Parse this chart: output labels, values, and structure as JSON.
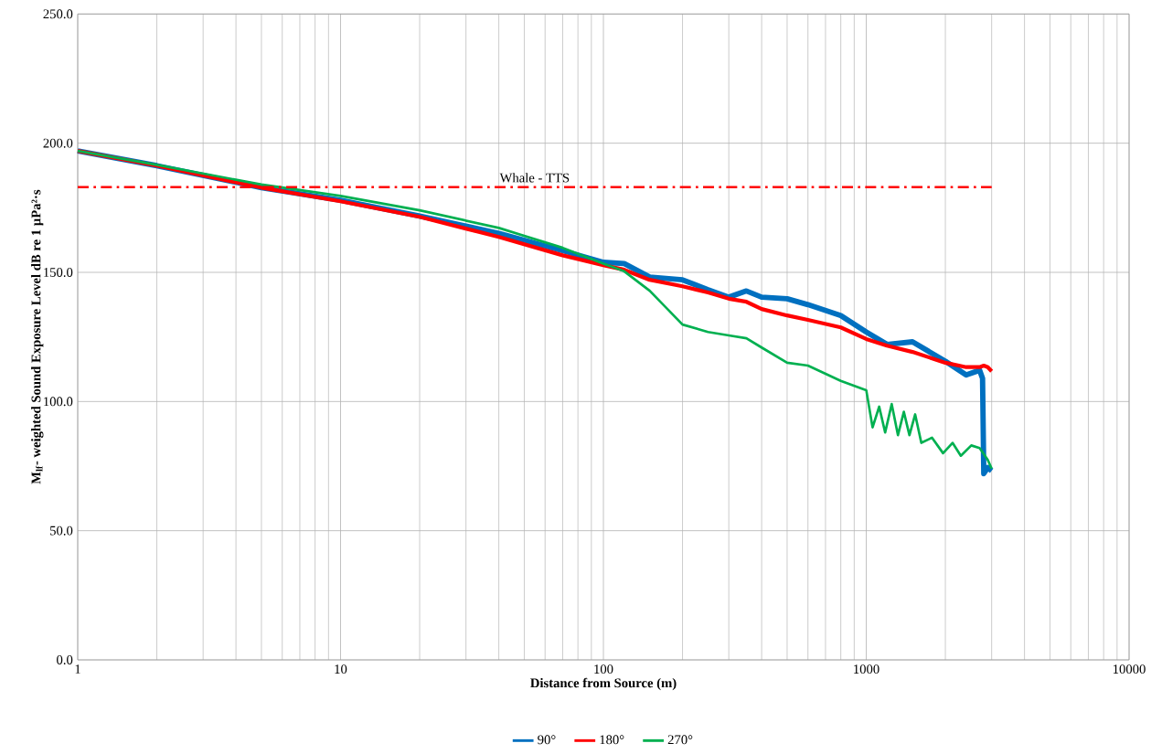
{
  "chart_data": {
    "type": "line",
    "xlabel": "Distance from Source (m)",
    "ylabel": "M$_{lf}$- weighted Sound Exposure Level dB re 1 µPa²·s",
    "log": "x",
    "grid": true,
    "legend": "bottom",
    "marker": "none",
    "line_style": "solid",
    "xlim": [
      1,
      10000
    ],
    "xticks": [
      1,
      10,
      100,
      1000,
      10000
    ],
    "ylim": [
      0,
      250
    ],
    "yticks": [
      {
        "value": 0,
        "label": "0.0"
      },
      {
        "value": 50,
        "label": "50.0"
      },
      {
        "value": 100,
        "label": "100.0"
      },
      {
        "value": 150,
        "label": "150.0"
      },
      {
        "value": 200,
        "label": "200.0"
      },
      {
        "value": 250,
        "label": "250.0"
      }
    ],
    "ref_lines": [
      {
        "axis": "y",
        "value": 183,
        "label": "Whale - TTS",
        "color": "#ff0000",
        "line_style": "dashed"
      }
    ],
    "series": [
      {
        "name": "90°",
        "color": "#0070c0",
        "x": [
          1,
          2,
          5,
          10,
          20,
          40,
          70,
          100,
          120,
          150,
          200,
          250,
          300,
          350,
          400,
          500,
          600,
          800,
          1000,
          1200,
          1500,
          2000,
          2400,
          2700,
          2770,
          2800,
          2900,
          3000
        ],
        "values": [
          197,
          191.3,
          182.8,
          177.9,
          171.8,
          165.1,
          158.4,
          153.9,
          153.4,
          148.2,
          147.1,
          143.3,
          140.4,
          142.8,
          140.4,
          139.8,
          137.5,
          133.3,
          126.9,
          122.1,
          123.1,
          115.6,
          110.3,
          112.1,
          109,
          72.1,
          74.4,
          73.2
        ]
      },
      {
        "name": "180°",
        "color": "#ff0000",
        "x": [
          1,
          2,
          5,
          10,
          20,
          40,
          70,
          100,
          120,
          150,
          200,
          250,
          300,
          350,
          400,
          500,
          600,
          800,
          1000,
          1200,
          1500,
          2000,
          2400,
          2700,
          2800,
          2900,
          3000
        ],
        "values": [
          197,
          191.3,
          182.8,
          177.5,
          171.5,
          163.7,
          156.6,
          152.8,
          151,
          147.1,
          144.6,
          142.2,
          139.8,
          138.6,
          135.8,
          133.3,
          131.6,
          128.7,
          124.2,
          121.6,
          119.2,
          115,
          113.3,
          113.3,
          113.9,
          113.3,
          111.7
        ]
      },
      {
        "name": "270°",
        "color": "#00b050",
        "x": [
          1,
          2,
          5,
          10,
          20,
          40,
          70,
          100,
          120,
          150,
          200,
          250,
          300,
          350,
          400,
          500,
          600,
          800,
          1000,
          1057,
          1120,
          1180,
          1250,
          1320,
          1390,
          1460,
          1535,
          1620,
          1780,
          1960,
          2130,
          2290,
          2510,
          2700,
          2800,
          2900,
          3000
        ],
        "values": [
          197,
          191.6,
          184,
          179.6,
          174,
          167.2,
          159.5,
          153.4,
          150.4,
          142.9,
          129.8,
          126.9,
          125.6,
          124.5,
          120.9,
          115,
          113.9,
          108,
          104.4,
          90,
          98,
          88,
          99,
          87,
          96,
          87,
          95,
          84,
          86,
          80,
          84,
          79,
          83,
          82,
          79.7,
          77.4,
          74
        ]
      }
    ]
  }
}
